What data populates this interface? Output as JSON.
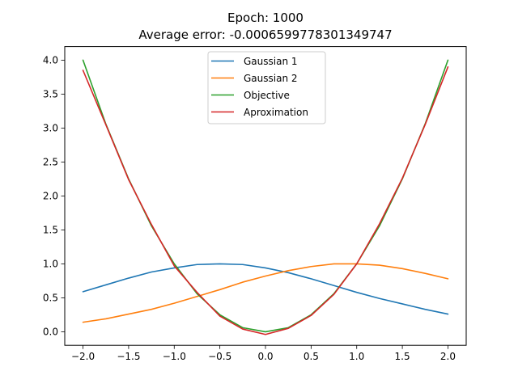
{
  "chart_data": {
    "type": "line",
    "title_line1": "Epoch: 1000",
    "title_line2": "Average error: -0.0006599778301349747",
    "xlabel": "",
    "ylabel": "",
    "xlim": [
      -2.2,
      2.2
    ],
    "ylim": [
      -0.2,
      4.2
    ],
    "x_ticks": [
      -2.0,
      -1.5,
      -1.0,
      -0.5,
      0.0,
      0.5,
      1.0,
      1.5,
      2.0
    ],
    "x_tick_labels": [
      "−2.0",
      "−1.5",
      "−1.0",
      "−0.5",
      "0.0",
      "0.5",
      "1.0",
      "1.5",
      "2.0"
    ],
    "y_ticks": [
      0.0,
      0.5,
      1.0,
      1.5,
      2.0,
      2.5,
      3.0,
      3.5,
      4.0
    ],
    "y_tick_labels": [
      "0.0",
      "0.5",
      "1.0",
      "1.5",
      "2.0",
      "2.5",
      "3.0",
      "3.5",
      "4.0"
    ],
    "grid": false,
    "legend_position": "top-center",
    "x": [
      -2.0,
      -1.75,
      -1.5,
      -1.25,
      -1.0,
      -0.75,
      -0.5,
      -0.25,
      0.0,
      0.25,
      0.5,
      0.75,
      1.0,
      1.25,
      1.5,
      1.75,
      2.0
    ],
    "series": [
      {
        "name": "Gaussian 1",
        "color": "#1f77b4",
        "values": [
          0.59,
          0.69,
          0.79,
          0.88,
          0.94,
          0.99,
          1.0,
          0.99,
          0.94,
          0.87,
          0.78,
          0.68,
          0.58,
          0.49,
          0.41,
          0.33,
          0.26
        ]
      },
      {
        "name": "Gaussian 2",
        "color": "#ff7f0e",
        "values": [
          0.14,
          0.19,
          0.26,
          0.33,
          0.42,
          0.52,
          0.62,
          0.73,
          0.82,
          0.9,
          0.96,
          1.0,
          1.0,
          0.98,
          0.93,
          0.86,
          0.78
        ]
      },
      {
        "name": "Objective",
        "color": "#2ca02c",
        "values": [
          4.0,
          3.06,
          2.25,
          1.56,
          1.0,
          0.56,
          0.25,
          0.06,
          0.0,
          0.06,
          0.25,
          0.56,
          1.0,
          1.56,
          2.25,
          3.06,
          4.0
        ]
      },
      {
        "name": "Aproximation",
        "color": "#d62728",
        "values": [
          3.85,
          3.05,
          2.24,
          1.58,
          0.97,
          0.58,
          0.23,
          0.04,
          -0.04,
          0.05,
          0.24,
          0.55,
          1.0,
          1.59,
          2.26,
          3.05,
          3.9
        ]
      }
    ]
  }
}
